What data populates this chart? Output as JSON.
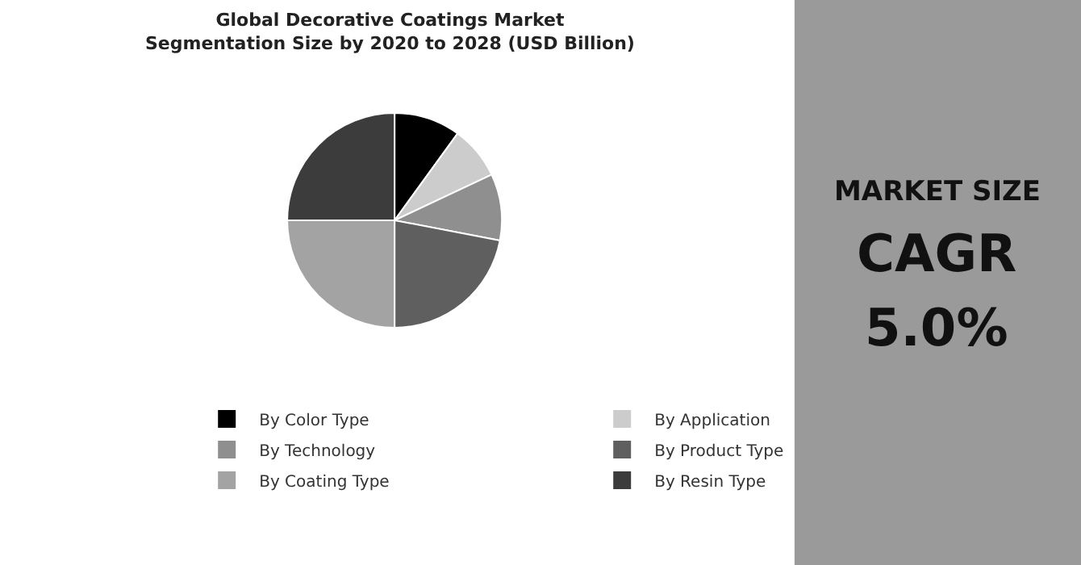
{
  "chart_data": [
    {
      "type": "pie",
      "title": "Global Decorative Coatings Market\nSegmentation Size by 2020 to 2028 (USD Billion)",
      "categories": [
        "By Color Type",
        "By Application",
        "By Technology",
        "By Product Type",
        "By Coating Type",
        "By Resin Type"
      ],
      "values": [
        10,
        8,
        10,
        22,
        25,
        25
      ],
      "colors": [
        "#000000",
        "#cccccc",
        "#8f8f8f",
        "#5f5f5f",
        "#a3a3a3",
        "#3c3c3c"
      ],
      "legend": "bottom"
    },
    {
      "type": "other",
      "title": "MARKET SIZE",
      "annotations": [
        "CAGR",
        "5.0%"
      ]
    }
  ]
}
